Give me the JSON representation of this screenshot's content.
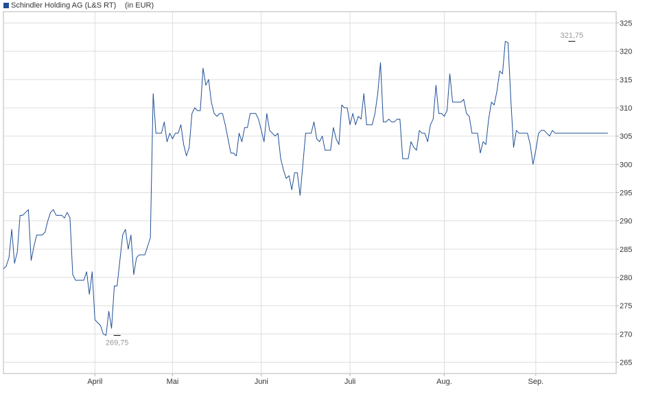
{
  "chart_data": {
    "type": "line",
    "title": "Schindler Holding AG (L&S RT)",
    "unit_label": "(in EUR)",
    "ylim": [
      263,
      327
    ],
    "y_ticks": [
      265,
      270,
      275,
      280,
      285,
      290,
      295,
      300,
      305,
      310,
      315,
      320,
      325
    ],
    "x_month_labels": [
      {
        "label": "April",
        "index": 33
      },
      {
        "label": "Mai",
        "index": 61
      },
      {
        "label": "Juni",
        "index": 93
      },
      {
        "label": "Juli",
        "index": 125
      },
      {
        "label": "Aug.",
        "index": 159
      },
      {
        "label": "Sep.",
        "index": 192
      }
    ],
    "x_count": 222,
    "grid": true,
    "legend": "top-left",
    "colors": {
      "line": "#1f4e96",
      "grid": "#dddddd",
      "frame": "#b4b4b4",
      "annotation": "#999999",
      "text": "#333333",
      "legend_box": "#1f4e96"
    },
    "annotations": [
      {
        "label": "269,75",
        "index": 41,
        "value": 269.75,
        "position": "below"
      },
      {
        "label": "321,75",
        "index": 205,
        "value": 321.75,
        "position": "above"
      }
    ],
    "series": [
      {
        "name": "Schindler Holding AG (L&S RT)",
        "values": [
          281.5,
          282,
          283.5,
          288.5,
          282.5,
          284.5,
          291,
          291,
          291.5,
          292,
          283,
          285.5,
          287.5,
          287.5,
          287.5,
          288,
          290,
          291.5,
          292,
          291,
          291,
          291,
          290.5,
          291.5,
          290.5,
          280.5,
          279.5,
          279.5,
          279.5,
          279.5,
          281,
          277,
          281,
          272.5,
          272,
          271.5,
          270,
          269.75,
          274,
          271,
          278.5,
          278.5,
          283,
          287.5,
          288.5,
          285,
          287.5,
          280.5,
          283.5,
          284,
          284,
          284,
          285.5,
          287,
          312.5,
          305.5,
          305.5,
          305.5,
          307.5,
          304,
          305.5,
          304.5,
          305.5,
          305.5,
          307,
          303.5,
          301.5,
          303,
          309,
          310,
          309.5,
          309.5,
          317,
          314,
          315,
          311,
          309,
          308.5,
          309,
          309,
          307,
          304.5,
          302,
          302,
          301.5,
          305.5,
          304,
          306.5,
          306.5,
          309,
          309,
          309,
          308,
          306,
          304,
          309,
          306,
          305.5,
          305,
          305.5,
          301,
          299,
          297.5,
          298,
          295.5,
          298.5,
          298.5,
          294.5,
          300,
          305.5,
          305.5,
          305.5,
          307.5,
          304.5,
          304,
          305,
          302.5,
          302.5,
          302.5,
          306.5,
          304.5,
          303.5,
          310.5,
          310,
          310,
          307,
          309,
          307,
          308.5,
          308,
          312.5,
          307,
          307,
          307,
          309,
          312.5,
          318,
          307.5,
          307.5,
          308,
          307.5,
          307.5,
          308,
          308,
          301,
          301,
          301,
          304,
          303,
          302.5,
          306,
          305.5,
          305.5,
          304,
          307,
          308,
          314,
          309,
          309,
          308.5,
          309.5,
          316,
          311,
          311,
          311,
          311,
          311.5,
          309,
          308.5,
          305.5,
          305.5,
          305.5,
          302,
          304,
          303.5,
          308,
          311,
          310.5,
          313,
          316.5,
          316,
          321.75,
          321.5,
          311.5,
          303,
          306,
          305.5,
          305.5,
          305.5,
          305.5,
          303.5,
          300,
          302.5,
          305.5,
          306,
          306,
          305.5,
          305,
          306,
          305.5,
          305.5,
          305.5,
          305.5,
          305.5,
          305.5,
          305.5,
          305.5,
          305.5,
          305.5,
          305.5,
          305.5,
          305.5,
          305.5,
          305.5,
          305.5,
          305.5,
          305.5,
          305.5,
          305.5
        ]
      }
    ]
  }
}
